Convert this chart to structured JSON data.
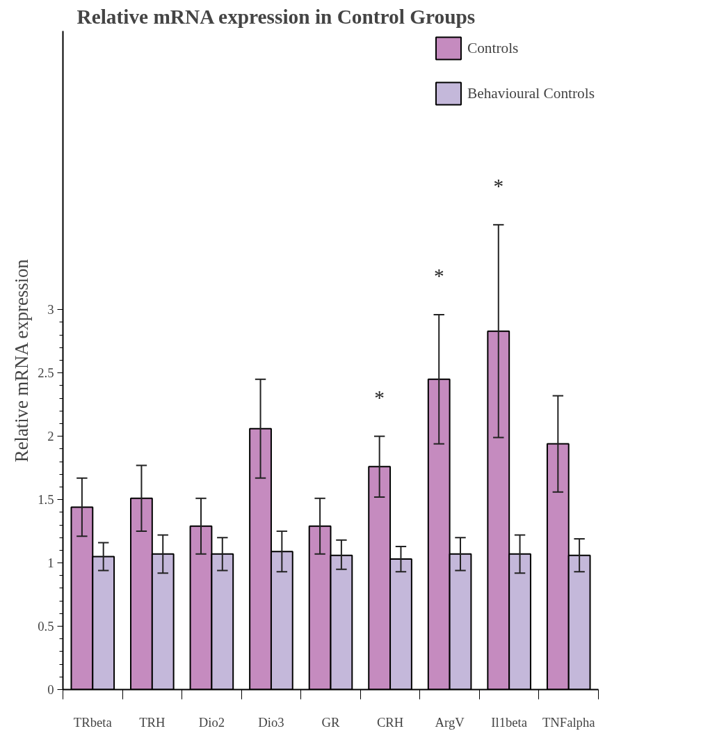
{
  "chart_data": {
    "type": "bar",
    "title": "Relative mRNA expression in Control Groups",
    "ylabel": "Relative mRNA expression",
    "categories": [
      "TRbeta",
      "TRH",
      "Dio2",
      "Dio3",
      "GR",
      "CRH",
      "ArgV",
      "Il1beta",
      "TNFalpha"
    ],
    "series": [
      {
        "name": "Controls",
        "color": "#c58bbf",
        "values": [
          1.44,
          1.51,
          1.29,
          2.06,
          1.29,
          1.76,
          2.45,
          2.83,
          1.94
        ],
        "errors": [
          [
            1.21,
            1.67
          ],
          [
            1.25,
            1.77
          ],
          [
            1.07,
            1.51
          ],
          [
            1.67,
            2.45
          ],
          [
            1.07,
            1.51
          ],
          [
            1.52,
            2.0
          ],
          [
            1.94,
            2.96
          ],
          [
            1.99,
            3.67
          ],
          [
            1.56,
            2.32
          ]
        ]
      },
      {
        "name": "Behavioural Controls",
        "color": "#c4b8da",
        "values": [
          1.05,
          1.07,
          1.07,
          1.09,
          1.06,
          1.03,
          1.07,
          1.07,
          1.06
        ],
        "errors": [
          [
            0.94,
            1.16
          ],
          [
            0.92,
            1.22
          ],
          [
            0.94,
            1.2
          ],
          [
            0.93,
            1.25
          ],
          [
            0.95,
            1.18
          ],
          [
            0.93,
            1.13
          ],
          [
            0.94,
            1.2
          ],
          [
            0.92,
            1.22
          ],
          [
            0.93,
            1.19
          ]
        ]
      }
    ],
    "ylim": [
      0,
      5.2
    ],
    "yticks": [
      0,
      {
        "value": 0.1,
        "label": null
      },
      {
        "value": 0.2,
        "label": null
      },
      {
        "value": 0.3,
        "label": null
      },
      {
        "value": 0.4,
        "label": null
      },
      0.5,
      {
        "value": 0.6,
        "label": null
      },
      {
        "value": 0.7,
        "label": null
      },
      {
        "value": 0.8,
        "label": null
      },
      {
        "value": 0.9,
        "label": null
      },
      1,
      {
        "value": 1.1,
        "label": null
      },
      {
        "value": 1.2,
        "label": null
      },
      {
        "value": 1.3,
        "label": null
      },
      {
        "value": 1.4,
        "label": null
      },
      1.5,
      {
        "value": 1.6,
        "label": null
      },
      {
        "value": 1.7,
        "label": null
      },
      {
        "value": 1.8,
        "label": null
      },
      {
        "value": 1.9,
        "label": null
      },
      2,
      {
        "value": 2.1,
        "label": null
      },
      {
        "value": 2.2,
        "label": null
      },
      {
        "value": 2.3,
        "label": null
      },
      {
        "value": 2.4,
        "label": null
      },
      2.5,
      {
        "value": 2.6,
        "label": null
      },
      {
        "value": 2.7,
        "label": null
      },
      {
        "value": 2.8,
        "label": null
      },
      {
        "value": 2.9,
        "label": null
      },
      3
    ],
    "annotations": [
      "*",
      "*",
      "*"
    ],
    "grid": false,
    "legend": "top right"
  }
}
